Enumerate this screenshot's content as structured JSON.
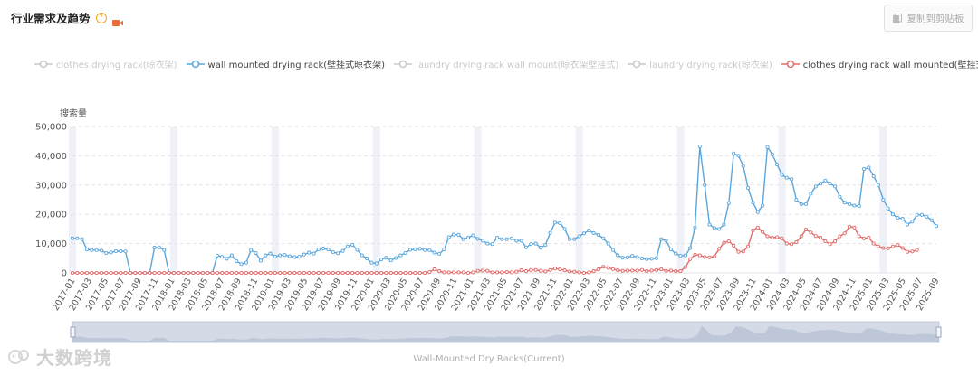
{
  "header": {
    "title": "行业需求及趋势",
    "help_glyph": "?",
    "copy_label": "复制到剪贴板"
  },
  "legend": [
    {
      "label": "clothes drying rack(晾衣架)",
      "active": false,
      "color": "#c8c8c8"
    },
    {
      "label": "wall mounted drying rack(壁挂式晾衣架)",
      "active": true,
      "color": "#5aa6dc"
    },
    {
      "label": "laundry drying rack wall mount(晾衣架壁挂式)",
      "active": false,
      "color": "#c8c8c8"
    },
    {
      "label": "laundry drying rack(晾衣架)",
      "active": false,
      "color": "#c8c8c8"
    },
    {
      "label": "clothes drying rack wall mounted(壁挂式晾衣架)",
      "active": true,
      "color": "#e26b6b"
    }
  ],
  "y_unit_label": "搜索量",
  "watermark": "大数跨境",
  "datazoom_label": "Wall-Mounted Dry Racks(Current)",
  "chart_data": {
    "type": "line",
    "ylabel": "搜索量",
    "ylim": [
      0,
      50000
    ],
    "yticks": [
      "0",
      "10,000",
      "20,000",
      "30,000",
      "40,000",
      "50,000"
    ],
    "x_start": "2017-01",
    "x_end": "2025-09",
    "x_tick_labels": [
      "2017-01",
      "2017-03",
      "2017-05",
      "2017-07",
      "2017-09",
      "2017-11",
      "2018-01",
      "2018-03",
      "2018-05",
      "2018-07",
      "2018-09",
      "2018-11",
      "2019-01",
      "2019-03",
      "2019-05",
      "2019-07",
      "2019-09",
      "2019-11",
      "2020-01",
      "2020-03",
      "2020-05",
      "2020-07",
      "2020-09",
      "2020-11",
      "2021-01",
      "2021-03",
      "2021-05",
      "2021-07",
      "2021-09",
      "2021-11",
      "2022-01",
      "2022-03",
      "2022-05",
      "2022-07",
      "2022-09",
      "2022-11",
      "2023-01",
      "2023-03",
      "2023-05",
      "2023-07",
      "2023-09",
      "2023-11",
      "2024-01",
      "2024-03",
      "2024-05",
      "2024-07",
      "2024-09",
      "2024-11",
      "2025-01",
      "2025-03",
      "2025-05",
      "2025-07",
      "2025-09"
    ],
    "series": [
      {
        "name": "wall mounted drying rack(壁挂式晾衣架)",
        "color": "#5aa6dc",
        "values": [
          11800,
          11800,
          11500,
          8000,
          7800,
          7800,
          7600,
          6800,
          7000,
          7400,
          7400,
          7300,
          0,
          0,
          0,
          0,
          0,
          8600,
          8700,
          7800,
          0,
          0,
          0,
          0,
          0,
          0,
          0,
          0,
          0,
          0,
          5900,
          5500,
          4800,
          6000,
          4000,
          3000,
          3500,
          7800,
          6800,
          4200,
          6000,
          6600,
          5600,
          6000,
          6100,
          5700,
          5400,
          5500,
          6300,
          6900,
          6600,
          8000,
          8300,
          8000,
          7100,
          6700,
          7500,
          9000,
          9600,
          7900,
          6000,
          4900,
          3500,
          3200,
          4600,
          5200,
          4300,
          5100,
          6000,
          6800,
          7900,
          8000,
          8200,
          7800,
          7800,
          6900,
          6500,
          8000,
          12200,
          13100,
          13000,
          11500,
          12000,
          12800,
          11600,
          11000,
          10000,
          9800,
          12000,
          11500,
          11500,
          11800,
          11000,
          11000,
          8700,
          9800,
          10000,
          8600,
          9500,
          13700,
          17200,
          17000,
          15000,
          11500,
          11500,
          12500,
          13500,
          14500,
          13600,
          13000,
          11800,
          10000,
          7800,
          6000,
          5200,
          5300,
          5800,
          5400,
          4900,
          4700,
          4800,
          5000,
          11500,
          11000,
          8000,
          6600,
          5800,
          6000,
          8500,
          15500,
          43200,
          30000,
          16500,
          15300,
          15000,
          16500,
          23800,
          40800,
          40000,
          36500,
          29000,
          24000,
          20800,
          23000,
          43000,
          40500,
          37000,
          33500,
          32500,
          32000,
          25000,
          23500,
          23500,
          27000,
          29500,
          30500,
          31500,
          30500,
          29500,
          26000,
          24000,
          23500,
          23000,
          22800,
          35500,
          36000,
          33000,
          30000,
          25000,
          22000,
          20000,
          18800,
          18500,
          16500,
          17500,
          19800,
          19800,
          19200,
          18000,
          16000
        ]
      },
      {
        "name": "clothes drying rack wall mounted(壁挂式晾衣架)",
        "color": "#e26b6b",
        "values": [
          0,
          0,
          0,
          0,
          0,
          0,
          0,
          0,
          0,
          0,
          0,
          0,
          0,
          0,
          0,
          0,
          0,
          0,
          0,
          0,
          0,
          0,
          0,
          0,
          0,
          0,
          0,
          0,
          0,
          0,
          0,
          0,
          0,
          0,
          0,
          0,
          0,
          0,
          0,
          0,
          0,
          0,
          0,
          0,
          0,
          0,
          0,
          0,
          0,
          0,
          0,
          0,
          0,
          0,
          0,
          0,
          0,
          0,
          0,
          0,
          0,
          0,
          0,
          0,
          0,
          0,
          0,
          0,
          0,
          0,
          0,
          0,
          0,
          0,
          300,
          1200,
          600,
          200,
          200,
          200,
          200,
          200,
          0,
          200,
          700,
          800,
          700,
          200,
          200,
          200,
          300,
          200,
          400,
          900,
          600,
          1000,
          1000,
          700,
          500,
          1000,
          1500,
          1200,
          900,
          500,
          400,
          200,
          0,
          200,
          600,
          1200,
          2100,
          1700,
          1300,
          900,
          700,
          800,
          800,
          800,
          1000,
          600,
          800,
          1000,
          1200,
          700,
          800,
          600,
          600,
          2000,
          4700,
          6200,
          6000,
          5400,
          5300,
          5600,
          8200,
          10300,
          10800,
          9300,
          7200,
          7300,
          9000,
          14500,
          15500,
          14000,
          12500,
          12000,
          12200,
          11800,
          10000,
          9800,
          10500,
          12500,
          14800,
          13800,
          12600,
          12000,
          10800,
          9800,
          10800,
          12500,
          13500,
          15800,
          15500,
          12500,
          11800,
          12000,
          10000,
          9000,
          8500,
          8400,
          9000,
          9500,
          8500,
          7200,
          7300,
          7800
        ]
      }
    ],
    "grid": true,
    "legend_position": "top"
  }
}
